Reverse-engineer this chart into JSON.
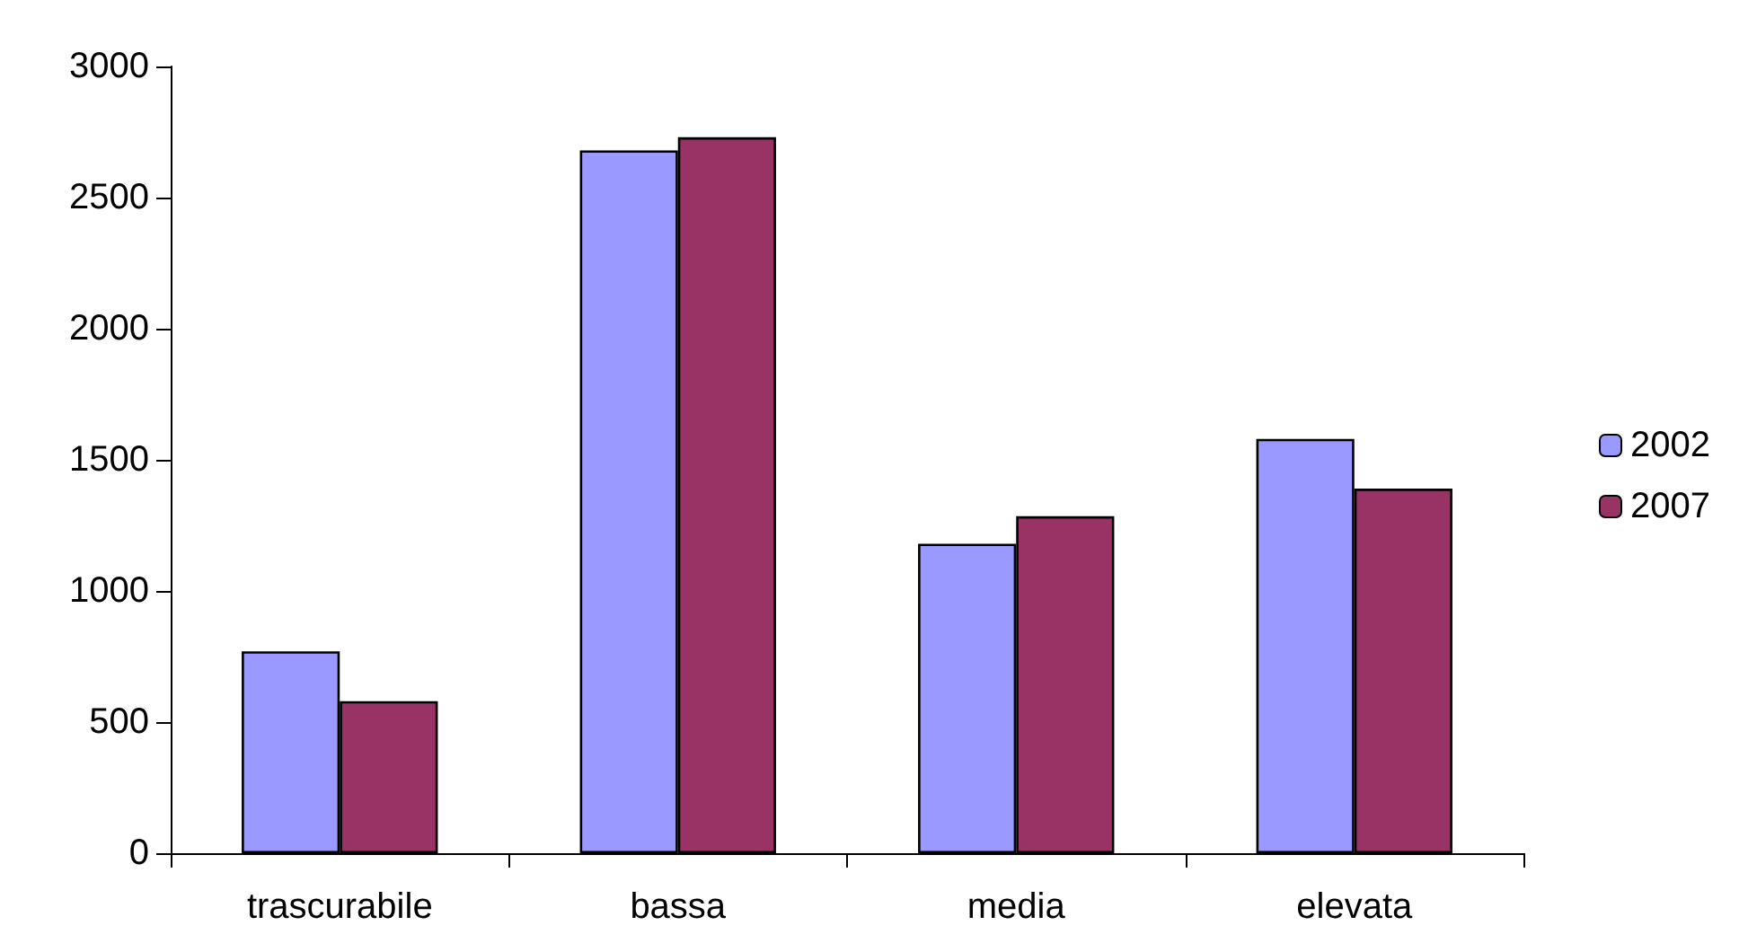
{
  "chart_data": {
    "type": "bar",
    "categories": [
      "trascurabile",
      "bassa",
      "media",
      "elevata"
    ],
    "series": [
      {
        "name": "2002",
        "color": "#9999ff",
        "values": [
          770,
          2680,
          1180,
          1580
        ]
      },
      {
        "name": "2007",
        "color": "#993366",
        "values": [
          580,
          2730,
          1285,
          1390
        ]
      }
    ],
    "ylim": [
      0,
      3000
    ],
    "yticks": [
      0,
      500,
      1000,
      1500,
      2000,
      2500,
      3000
    ],
    "grid": false,
    "legend": "right"
  }
}
